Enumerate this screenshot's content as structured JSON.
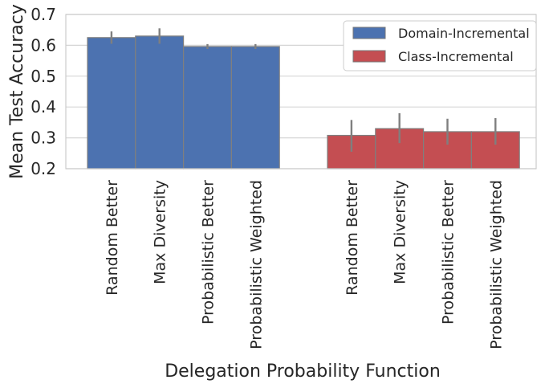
{
  "chart_data": {
    "type": "bar",
    "xlabel": "Delegation Probability Function",
    "ylabel": "Mean Test Accuracy",
    "ylim": [
      0.2,
      0.7
    ],
    "yticks": [
      0.2,
      0.3,
      0.4,
      0.5,
      0.6,
      0.7
    ],
    "yticklabels": [
      "0.2",
      "0.3",
      "0.4",
      "0.5",
      "0.6",
      "0.7"
    ],
    "grid": "horizontal",
    "legend_position": "top-right",
    "groups": [
      {
        "name": "Domain-Incremental",
        "color": "#4c72b0",
        "categories": [
          "Random Better",
          "Max Diversity",
          "Probabilistic Better",
          "Probabilistic Weighted"
        ],
        "values": [
          0.625,
          0.63,
          0.596,
          0.596
        ],
        "error_low": [
          0.605,
          0.605,
          0.588,
          0.588
        ],
        "error_high": [
          0.645,
          0.655,
          0.604,
          0.604
        ]
      },
      {
        "name": "Class-Incremental",
        "color": "#c44e52",
        "categories": [
          "Random Better",
          "Max Diversity",
          "Probabilistic Better",
          "Probabilistic Weighted"
        ],
        "values": [
          0.308,
          0.33,
          0.32,
          0.32
        ],
        "error_low": [
          0.255,
          0.283,
          0.278,
          0.278
        ],
        "error_high": [
          0.358,
          0.38,
          0.362,
          0.364
        ]
      }
    ]
  }
}
